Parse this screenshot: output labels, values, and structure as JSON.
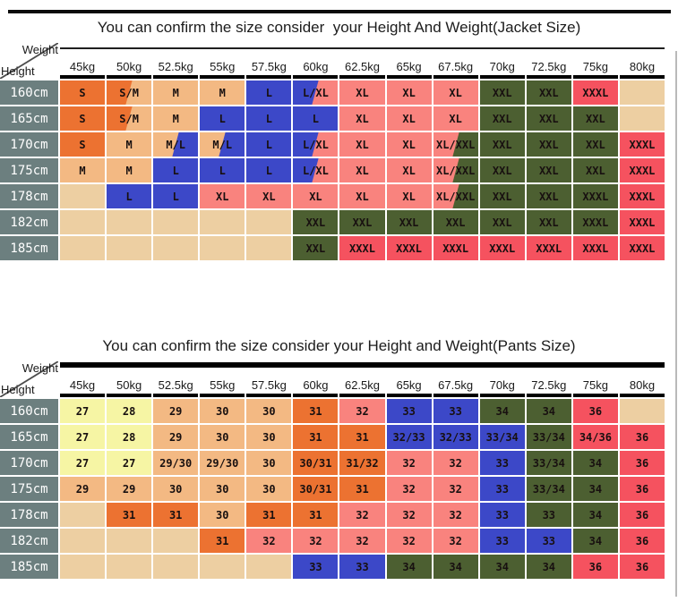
{
  "colors": {
    "palette": {
      "o": "#EC7231",
      "t": "#F3B983",
      "b": "#3C48C8",
      "p": "#F9837E",
      "g": "#4C5F31",
      "r": "#F5525F",
      "e": "#EDCFA2",
      "y": "#F6F5A4"
    },
    "row_header_bg": "#6C7F7F",
    "grid_line": "#FFFFFF",
    "cell_text": "#181010"
  },
  "jacket": {
    "title": "You can confirm the size consider  your Height And Weight(Jacket Size)",
    "corner": {
      "weight_label": "Weight",
      "height_label": "Height"
    },
    "weights": [
      "45kg",
      "50kg",
      "52.5kg",
      "55kg",
      "57.5kg",
      "60kg",
      "62.5kg",
      "65kg",
      "67.5kg",
      "70kg",
      "72.5kg",
      "75kg",
      "80kg"
    ],
    "rows": [
      {
        "height": "160cm",
        "values": [
          "S",
          "S/M",
          "M",
          "M",
          "L",
          "L/XL",
          "XL",
          "XL",
          "XL",
          "XXL",
          "XXL",
          "XXXL",
          ""
        ],
        "colors": [
          "o",
          "ot",
          "t",
          "t",
          "b",
          "bp",
          "p",
          "p",
          "p",
          "g",
          "g",
          "r",
          "e"
        ]
      },
      {
        "height": "165cm",
        "values": [
          "S",
          "S/M",
          "M",
          "L",
          "L",
          "L",
          "XL",
          "XL",
          "XL",
          "XXL",
          "XXL",
          "XXL",
          ""
        ],
        "colors": [
          "o",
          "ot",
          "t",
          "b",
          "b",
          "b",
          "p",
          "p",
          "p",
          "g",
          "g",
          "g",
          "e"
        ]
      },
      {
        "height": "170cm",
        "values": [
          "S",
          "M",
          "M/L",
          "M/L",
          "L",
          "L/XL",
          "XL",
          "XL",
          "XL/XXL",
          "XXL",
          "XXL",
          "XXL",
          "XXXL"
        ],
        "colors": [
          "o",
          "t",
          "tb",
          "tb",
          "b",
          "bp",
          "p",
          "p",
          "pg",
          "g",
          "g",
          "g",
          "r"
        ]
      },
      {
        "height": "175cm",
        "values": [
          "M",
          "M",
          "L",
          "L",
          "L",
          "L/XL",
          "XL",
          "XL",
          "XL/XXL",
          "XXL",
          "XXL",
          "XXL",
          "XXXL"
        ],
        "colors": [
          "t",
          "t",
          "b",
          "b",
          "b",
          "bp",
          "p",
          "p",
          "pg",
          "g",
          "g",
          "g",
          "r"
        ]
      },
      {
        "height": "178cm",
        "values": [
          "",
          "L",
          "L",
          "XL",
          "XL",
          "XL",
          "XL",
          "XL",
          "XL/XXL",
          "XXL",
          "XXL",
          "XXXL",
          "XXXL"
        ],
        "colors": [
          "e",
          "b",
          "b",
          "p",
          "p",
          "p",
          "p",
          "p",
          "pg",
          "g",
          "g",
          "g",
          "r"
        ]
      },
      {
        "height": "182cm",
        "values": [
          "",
          "",
          "",
          "",
          "",
          "XXL",
          "XXL",
          "XXL",
          "XXL",
          "XXL",
          "XXL",
          "XXXL",
          "XXXL"
        ],
        "colors": [
          "e",
          "e",
          "e",
          "e",
          "e",
          "g",
          "g",
          "g",
          "g",
          "g",
          "g",
          "g",
          "r"
        ]
      },
      {
        "height": "185cm",
        "values": [
          "",
          "",
          "",
          "",
          "",
          "XXL",
          "XXXL",
          "XXXL",
          "XXXL",
          "XXXL",
          "XXXL",
          "XXXL",
          "XXXL"
        ],
        "colors": [
          "e",
          "e",
          "e",
          "e",
          "e",
          "g",
          "r",
          "r",
          "r",
          "r",
          "r",
          "r",
          "r"
        ]
      }
    ]
  },
  "pants": {
    "title": "You can confirm the size consider your Height and Weight(Pants Size)",
    "corner": {
      "weight_label": "Weight",
      "height_label": "Height"
    },
    "weights": [
      "45kg",
      "50kg",
      "52.5kg",
      "55kg",
      "57.5kg",
      "60kg",
      "62.5kg",
      "65kg",
      "67.5kg",
      "70kg",
      "72.5kg",
      "75kg",
      "80kg"
    ],
    "rows": [
      {
        "height": "160cm",
        "values": [
          "27",
          "28",
          "29",
          "30",
          "30",
          "31",
          "32",
          "33",
          "33",
          "34",
          "34",
          "36",
          ""
        ],
        "colors": [
          "y",
          "y",
          "t",
          "t",
          "t",
          "o",
          "p",
          "b",
          "b",
          "g",
          "g",
          "r",
          "e"
        ]
      },
      {
        "height": "165cm",
        "values": [
          "27",
          "28",
          "29",
          "30",
          "30",
          "31",
          "31",
          "32/33",
          "32/33",
          "33/34",
          "33/34",
          "34/36",
          "36"
        ],
        "colors": [
          "y",
          "y",
          "t",
          "t",
          "t",
          "o",
          "o",
          "b",
          "b",
          "b",
          "g",
          "r",
          "r"
        ]
      },
      {
        "height": "170cm",
        "values": [
          "27",
          "27",
          "29/30",
          "29/30",
          "30",
          "30/31",
          "31/32",
          "32",
          "32",
          "33",
          "33/34",
          "34",
          "36"
        ],
        "colors": [
          "y",
          "y",
          "t",
          "t",
          "t",
          "o",
          "o",
          "p",
          "p",
          "b",
          "g",
          "g",
          "r"
        ]
      },
      {
        "height": "175cm",
        "values": [
          "29",
          "29",
          "30",
          "30",
          "30",
          "30/31",
          "31",
          "32",
          "32",
          "33",
          "33/34",
          "34",
          "36"
        ],
        "colors": [
          "t",
          "t",
          "t",
          "t",
          "t",
          "o",
          "o",
          "p",
          "p",
          "b",
          "g",
          "g",
          "r"
        ]
      },
      {
        "height": "178cm",
        "values": [
          "",
          "31",
          "31",
          "30",
          "31",
          "31",
          "32",
          "32",
          "32",
          "33",
          "33",
          "34",
          "36"
        ],
        "colors": [
          "e",
          "o",
          "o",
          "t",
          "o",
          "o",
          "p",
          "p",
          "p",
          "b",
          "g",
          "g",
          "r"
        ]
      },
      {
        "height": "182cm",
        "values": [
          "",
          "",
          "",
          "31",
          "32",
          "32",
          "32",
          "32",
          "32",
          "33",
          "33",
          "34",
          "36"
        ],
        "colors": [
          "e",
          "e",
          "e",
          "o",
          "p",
          "p",
          "p",
          "p",
          "p",
          "b",
          "b",
          "g",
          "r"
        ]
      },
      {
        "height": "185cm",
        "values": [
          "",
          "",
          "",
          "",
          "",
          "33",
          "33",
          "34",
          "34",
          "34",
          "34",
          "36",
          "36"
        ],
        "colors": [
          "e",
          "e",
          "e",
          "e",
          "e",
          "b",
          "b",
          "g",
          "g",
          "g",
          "g",
          "r",
          "r"
        ]
      }
    ]
  }
}
